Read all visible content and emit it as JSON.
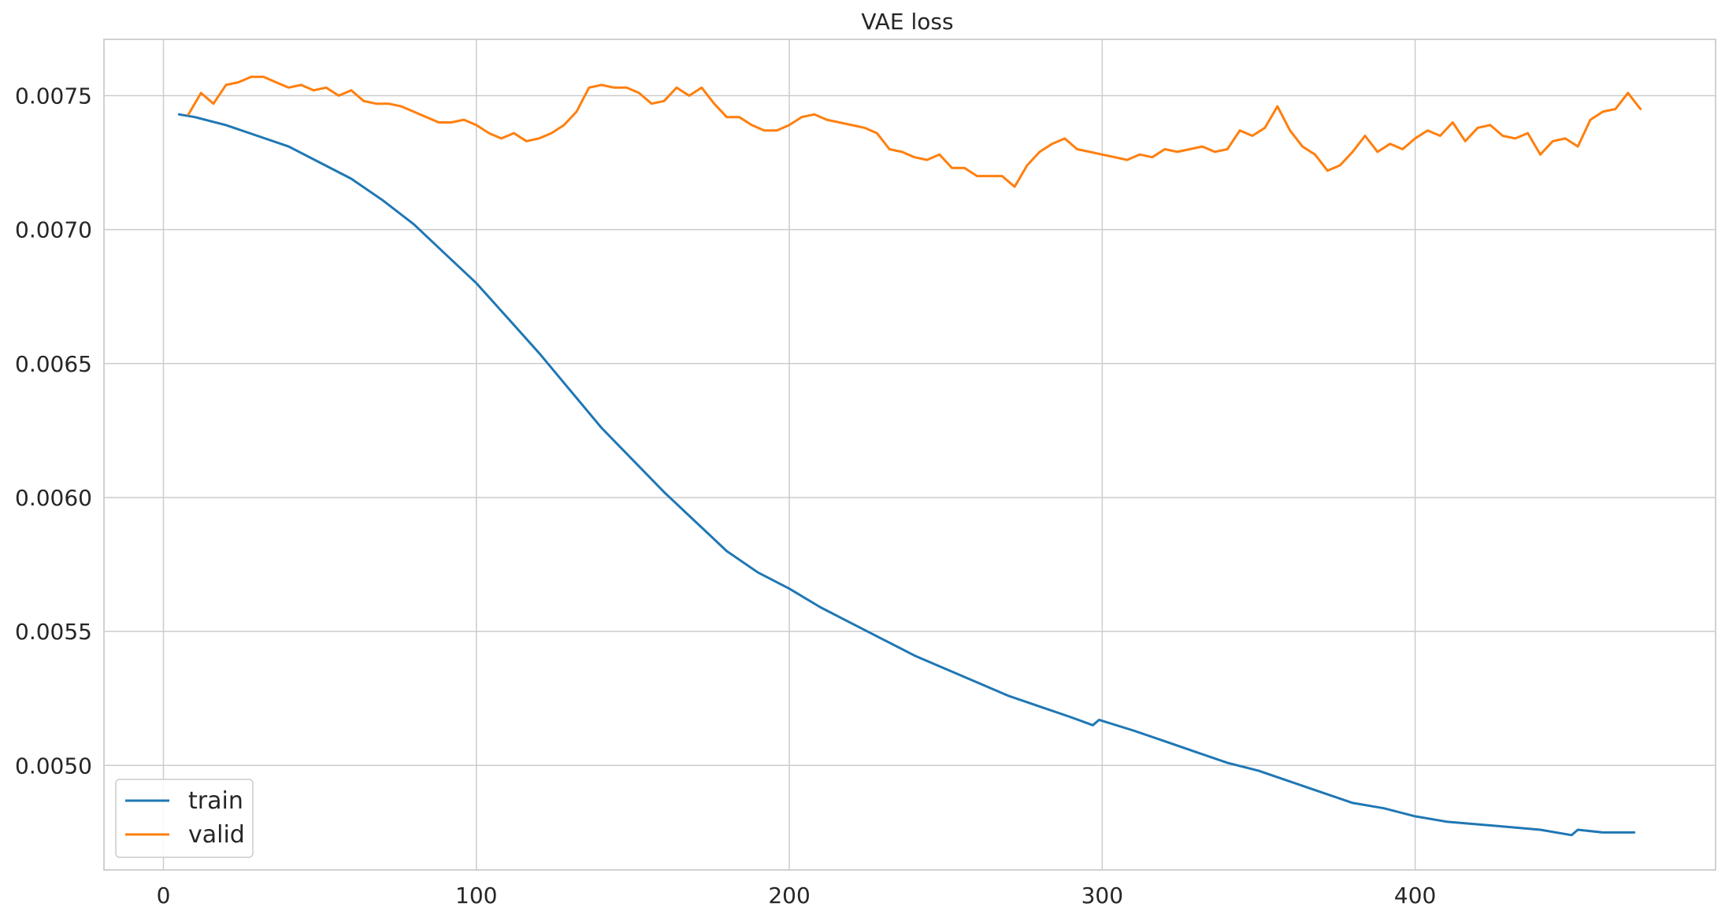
{
  "chart_data": {
    "type": "line",
    "title": "VAE loss",
    "xlabel": "",
    "ylabel": "",
    "xlim": [
      -19,
      496
    ],
    "ylim": [
      0.00461,
      0.00771
    ],
    "x_ticks": [
      0,
      100,
      200,
      300,
      400
    ],
    "y_ticks": [
      0.005,
      0.0055,
      0.006,
      0.0065,
      0.007,
      0.0075
    ],
    "x_tick_labels": [
      "0",
      "100",
      "200",
      "300",
      "400"
    ],
    "y_tick_labels": [
      "0.0050",
      "0.0055",
      "0.0060",
      "0.0065",
      "0.0070",
      "0.0075"
    ],
    "grid": true,
    "legend": {
      "position": "bottom-left"
    },
    "series": [
      {
        "name": "train",
        "color": "#1f77b4",
        "x": [
          5,
          10,
          20,
          30,
          40,
          50,
          60,
          70,
          80,
          90,
          100,
          110,
          120,
          130,
          140,
          150,
          160,
          170,
          180,
          190,
          200,
          210,
          220,
          230,
          240,
          250,
          260,
          270,
          280,
          290,
          297,
          299,
          310,
          320,
          330,
          340,
          350,
          360,
          370,
          380,
          390,
          400,
          410,
          420,
          430,
          440,
          450,
          452,
          460,
          470
        ],
        "y": [
          0.00743,
          0.00742,
          0.00739,
          0.00735,
          0.00731,
          0.00725,
          0.00719,
          0.00711,
          0.00702,
          0.00691,
          0.0068,
          0.00667,
          0.00654,
          0.0064,
          0.00626,
          0.00614,
          0.00602,
          0.00591,
          0.0058,
          0.00572,
          0.00566,
          0.00559,
          0.00553,
          0.00547,
          0.00541,
          0.00536,
          0.00531,
          0.00526,
          0.00522,
          0.00518,
          0.00515,
          0.00517,
          0.00513,
          0.00509,
          0.00505,
          0.00501,
          0.00498,
          0.00494,
          0.0049,
          0.00486,
          0.00484,
          0.00481,
          0.00479,
          0.00478,
          0.00477,
          0.00476,
          0.00474,
          0.00476,
          0.00475,
          0.00475
        ]
      },
      {
        "name": "valid",
        "color": "#ff7f0e",
        "x": [
          8,
          12,
          16,
          20,
          24,
          28,
          32,
          36,
          40,
          44,
          48,
          52,
          56,
          60,
          64,
          68,
          72,
          76,
          80,
          84,
          88,
          92,
          96,
          100,
          104,
          108,
          112,
          116,
          120,
          124,
          128,
          132,
          136,
          140,
          144,
          148,
          152,
          156,
          160,
          164,
          168,
          172,
          176,
          180,
          184,
          188,
          192,
          196,
          200,
          204,
          208,
          212,
          216,
          220,
          224,
          228,
          232,
          236,
          240,
          244,
          248,
          252,
          256,
          260,
          264,
          268,
          272,
          276,
          280,
          284,
          288,
          292,
          296,
          300,
          304,
          308,
          312,
          316,
          320,
          324,
          328,
          332,
          336,
          340,
          344,
          348,
          352,
          356,
          360,
          364,
          368,
          372,
          376,
          380,
          384,
          388,
          392,
          396,
          400,
          404,
          408,
          412,
          416,
          420,
          424,
          428,
          432,
          436,
          440,
          444,
          448,
          452,
          456,
          460,
          464,
          468,
          472
        ],
        "y": [
          0.00743,
          0.00751,
          0.00747,
          0.00754,
          0.00755,
          0.00757,
          0.00757,
          0.00755,
          0.00753,
          0.00754,
          0.00752,
          0.00753,
          0.0075,
          0.00752,
          0.00748,
          0.00747,
          0.00747,
          0.00746,
          0.00744,
          0.00742,
          0.0074,
          0.0074,
          0.00741,
          0.00739,
          0.00736,
          0.00734,
          0.00736,
          0.00733,
          0.00734,
          0.00736,
          0.00739,
          0.00744,
          0.00753,
          0.00754,
          0.00753,
          0.00753,
          0.00751,
          0.00747,
          0.00748,
          0.00753,
          0.0075,
          0.00753,
          0.00747,
          0.00742,
          0.00742,
          0.00739,
          0.00737,
          0.00737,
          0.00739,
          0.00742,
          0.00743,
          0.00741,
          0.0074,
          0.00739,
          0.00738,
          0.00736,
          0.0073,
          0.00729,
          0.00727,
          0.00726,
          0.00728,
          0.00723,
          0.00723,
          0.0072,
          0.0072,
          0.0072,
          0.00716,
          0.00724,
          0.00729,
          0.00732,
          0.00734,
          0.0073,
          0.00729,
          0.00728,
          0.00727,
          0.00726,
          0.00728,
          0.00727,
          0.0073,
          0.00729,
          0.0073,
          0.00731,
          0.00729,
          0.0073,
          0.00737,
          0.00735,
          0.00738,
          0.00746,
          0.00737,
          0.00731,
          0.00728,
          0.00722,
          0.00724,
          0.00729,
          0.00735,
          0.00729,
          0.00732,
          0.0073,
          0.00734,
          0.00737,
          0.00735,
          0.0074,
          0.00733,
          0.00738,
          0.00739,
          0.00735,
          0.00734,
          0.00736,
          0.00728,
          0.00733,
          0.00734,
          0.00731,
          0.00741,
          0.00744,
          0.00745,
          0.00751,
          0.00745
        ]
      }
    ]
  }
}
